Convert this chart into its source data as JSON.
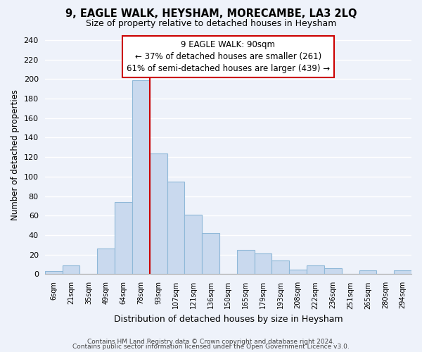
{
  "title": "9, EAGLE WALK, HEYSHAM, MORECAMBE, LA3 2LQ",
  "subtitle": "Size of property relative to detached houses in Heysham",
  "xlabel": "Distribution of detached houses by size in Heysham",
  "ylabel": "Number of detached properties",
  "bin_labels": [
    "6sqm",
    "21sqm",
    "35sqm",
    "49sqm",
    "64sqm",
    "78sqm",
    "93sqm",
    "107sqm",
    "121sqm",
    "136sqm",
    "150sqm",
    "165sqm",
    "179sqm",
    "193sqm",
    "208sqm",
    "222sqm",
    "236sqm",
    "251sqm",
    "265sqm",
    "280sqm",
    "294sqm"
  ],
  "bar_heights": [
    3,
    9,
    0,
    26,
    74,
    199,
    124,
    95,
    61,
    42,
    0,
    25,
    21,
    14,
    5,
    9,
    6,
    0,
    4,
    0,
    4
  ],
  "bar_color": "#c9d9ee",
  "bar_edge_color": "#8fb8d8",
  "vline_color": "#cc0000",
  "vline_x": 5.5,
  "ylim": [
    0,
    245
  ],
  "yticks": [
    0,
    20,
    40,
    60,
    80,
    100,
    120,
    140,
    160,
    180,
    200,
    220,
    240
  ],
  "annotation_title": "9 EAGLE WALK: 90sqm",
  "annotation_line1": "← 37% of detached houses are smaller (261)",
  "annotation_line2": "61% of semi-detached houses are larger (439) →",
  "annotation_box_color": "#ffffff",
  "annotation_box_edge": "#cc0000",
  "footer1": "Contains HM Land Registry data © Crown copyright and database right 2024.",
  "footer2": "Contains public sector information licensed under the Open Government Licence v3.0.",
  "bg_color": "#eef2fa",
  "plot_bg_color": "#eef2fa",
  "grid_color": "#ffffff"
}
